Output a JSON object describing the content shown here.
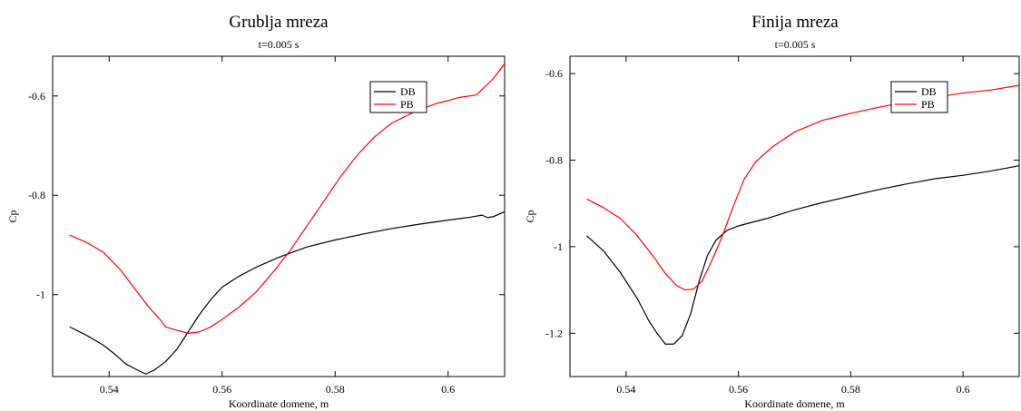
{
  "chart_data": [
    {
      "type": "line",
      "title": "Grublja mreza",
      "subtitle": "t=0.005 s",
      "xlabel": "Koordinate domene, m",
      "ylabel": "Cp",
      "xlim": [
        0.53,
        0.61
      ],
      "ylim": [
        -1.165,
        -0.52
      ],
      "xticks": [
        0.54,
        0.56,
        0.58,
        0.6
      ],
      "yticks": [
        -1,
        -0.8,
        -0.6
      ],
      "xtick_labels": [
        "0.54",
        "0.56",
        "0.58",
        "0.6"
      ],
      "ytick_labels": [
        "-1",
        "-0.8",
        "-0.6"
      ],
      "grid": false,
      "legend": "top-right",
      "series": [
        {
          "name": "DB",
          "color": "#000000",
          "points": [
            [
              0.533,
              -1.065
            ],
            [
              0.536,
              -1.082
            ],
            [
              0.539,
              -1.102
            ],
            [
              0.541,
              -1.12
            ],
            [
              0.543,
              -1.14
            ],
            [
              0.545,
              -1.152
            ],
            [
              0.5465,
              -1.16
            ],
            [
              0.548,
              -1.152
            ],
            [
              0.55,
              -1.135
            ],
            [
              0.552,
              -1.11
            ],
            [
              0.554,
              -1.075
            ],
            [
              0.556,
              -1.04
            ],
            [
              0.558,
              -1.01
            ],
            [
              0.56,
              -0.985
            ],
            [
              0.563,
              -0.963
            ],
            [
              0.566,
              -0.945
            ],
            [
              0.57,
              -0.925
            ],
            [
              0.575,
              -0.904
            ],
            [
              0.58,
              -0.89
            ],
            [
              0.585,
              -0.878
            ],
            [
              0.59,
              -0.867
            ],
            [
              0.595,
              -0.858
            ],
            [
              0.6,
              -0.85
            ],
            [
              0.604,
              -0.844
            ],
            [
              0.606,
              -0.84
            ],
            [
              0.607,
              -0.845
            ],
            [
              0.608,
              -0.843
            ],
            [
              0.61,
              -0.833
            ]
          ]
        },
        {
          "name": "PB",
          "color": "#ff0000",
          "points": [
            [
              0.533,
              -0.88
            ],
            [
              0.536,
              -0.895
            ],
            [
              0.539,
              -0.915
            ],
            [
              0.542,
              -0.95
            ],
            [
              0.545,
              -0.995
            ],
            [
              0.547,
              -1.025
            ],
            [
              0.549,
              -1.05
            ],
            [
              0.55,
              -1.065
            ],
            [
              0.552,
              -1.072
            ],
            [
              0.554,
              -1.078
            ],
            [
              0.556,
              -1.075
            ],
            [
              0.558,
              -1.065
            ],
            [
              0.56,
              -1.05
            ],
            [
              0.563,
              -1.025
            ],
            [
              0.566,
              -0.995
            ],
            [
              0.569,
              -0.955
            ],
            [
              0.572,
              -0.912
            ],
            [
              0.575,
              -0.862
            ],
            [
              0.578,
              -0.812
            ],
            [
              0.581,
              -0.762
            ],
            [
              0.584,
              -0.718
            ],
            [
              0.587,
              -0.682
            ],
            [
              0.59,
              -0.655
            ],
            [
              0.594,
              -0.632
            ],
            [
              0.598,
              -0.615
            ],
            [
              0.602,
              -0.603
            ],
            [
              0.605,
              -0.598
            ],
            [
              0.608,
              -0.565
            ],
            [
              0.61,
              -0.535
            ]
          ]
        }
      ]
    },
    {
      "type": "line",
      "title": "Finija mreza",
      "subtitle": "t=0.005 s",
      "xlabel": "Koordinate domene, m",
      "ylabel": "Cp",
      "xlim": [
        0.53,
        0.61
      ],
      "ylim": [
        -1.3,
        -0.56
      ],
      "xticks": [
        0.54,
        0.56,
        0.58,
        0.6
      ],
      "yticks": [
        -1.2,
        -1,
        -0.8,
        -0.6
      ],
      "xtick_labels": [
        "0.54",
        "0.56",
        "0.58",
        "0.6"
      ],
      "ytick_labels": [
        "-1.2",
        "-1",
        "-0.8",
        "-0.6"
      ],
      "grid": false,
      "legend": "top-right",
      "series": [
        {
          "name": "DB",
          "color": "#000000",
          "points": [
            [
              0.533,
              -0.975
            ],
            [
              0.536,
              -1.01
            ],
            [
              0.539,
              -1.06
            ],
            [
              0.542,
              -1.12
            ],
            [
              0.544,
              -1.17
            ],
            [
              0.5455,
              -1.2
            ],
            [
              0.547,
              -1.225
            ],
            [
              0.5485,
              -1.225
            ],
            [
              0.55,
              -1.205
            ],
            [
              0.5515,
              -1.155
            ],
            [
              0.553,
              -1.08
            ],
            [
              0.5545,
              -1.02
            ],
            [
              0.556,
              -0.985
            ],
            [
              0.558,
              -0.962
            ],
            [
              0.56,
              -0.952
            ],
            [
              0.565,
              -0.935
            ],
            [
              0.57,
              -0.915
            ],
            [
              0.575,
              -0.898
            ],
            [
              0.58,
              -0.883
            ],
            [
              0.585,
              -0.868
            ],
            [
              0.59,
              -0.855
            ],
            [
              0.595,
              -0.843
            ],
            [
              0.6,
              -0.835
            ],
            [
              0.605,
              -0.825
            ],
            [
              0.61,
              -0.813
            ]
          ]
        },
        {
          "name": "PB",
          "color": "#ff0000",
          "points": [
            [
              0.533,
              -0.89
            ],
            [
              0.536,
              -0.91
            ],
            [
              0.539,
              -0.935
            ],
            [
              0.542,
              -0.975
            ],
            [
              0.545,
              -1.025
            ],
            [
              0.547,
              -1.062
            ],
            [
              0.549,
              -1.09
            ],
            [
              0.5505,
              -1.1
            ],
            [
              0.552,
              -1.098
            ],
            [
              0.5535,
              -1.08
            ],
            [
              0.555,
              -1.04
            ],
            [
              0.557,
              -0.98
            ],
            [
              0.559,
              -0.91
            ],
            [
              0.561,
              -0.845
            ],
            [
              0.563,
              -0.805
            ],
            [
              0.566,
              -0.77
            ],
            [
              0.57,
              -0.735
            ],
            [
              0.575,
              -0.708
            ],
            [
              0.58,
              -0.692
            ],
            [
              0.585,
              -0.678
            ],
            [
              0.59,
              -0.665
            ],
            [
              0.595,
              -0.655
            ],
            [
              0.6,
              -0.645
            ],
            [
              0.605,
              -0.638
            ],
            [
              0.61,
              -0.627
            ]
          ]
        }
      ]
    }
  ]
}
